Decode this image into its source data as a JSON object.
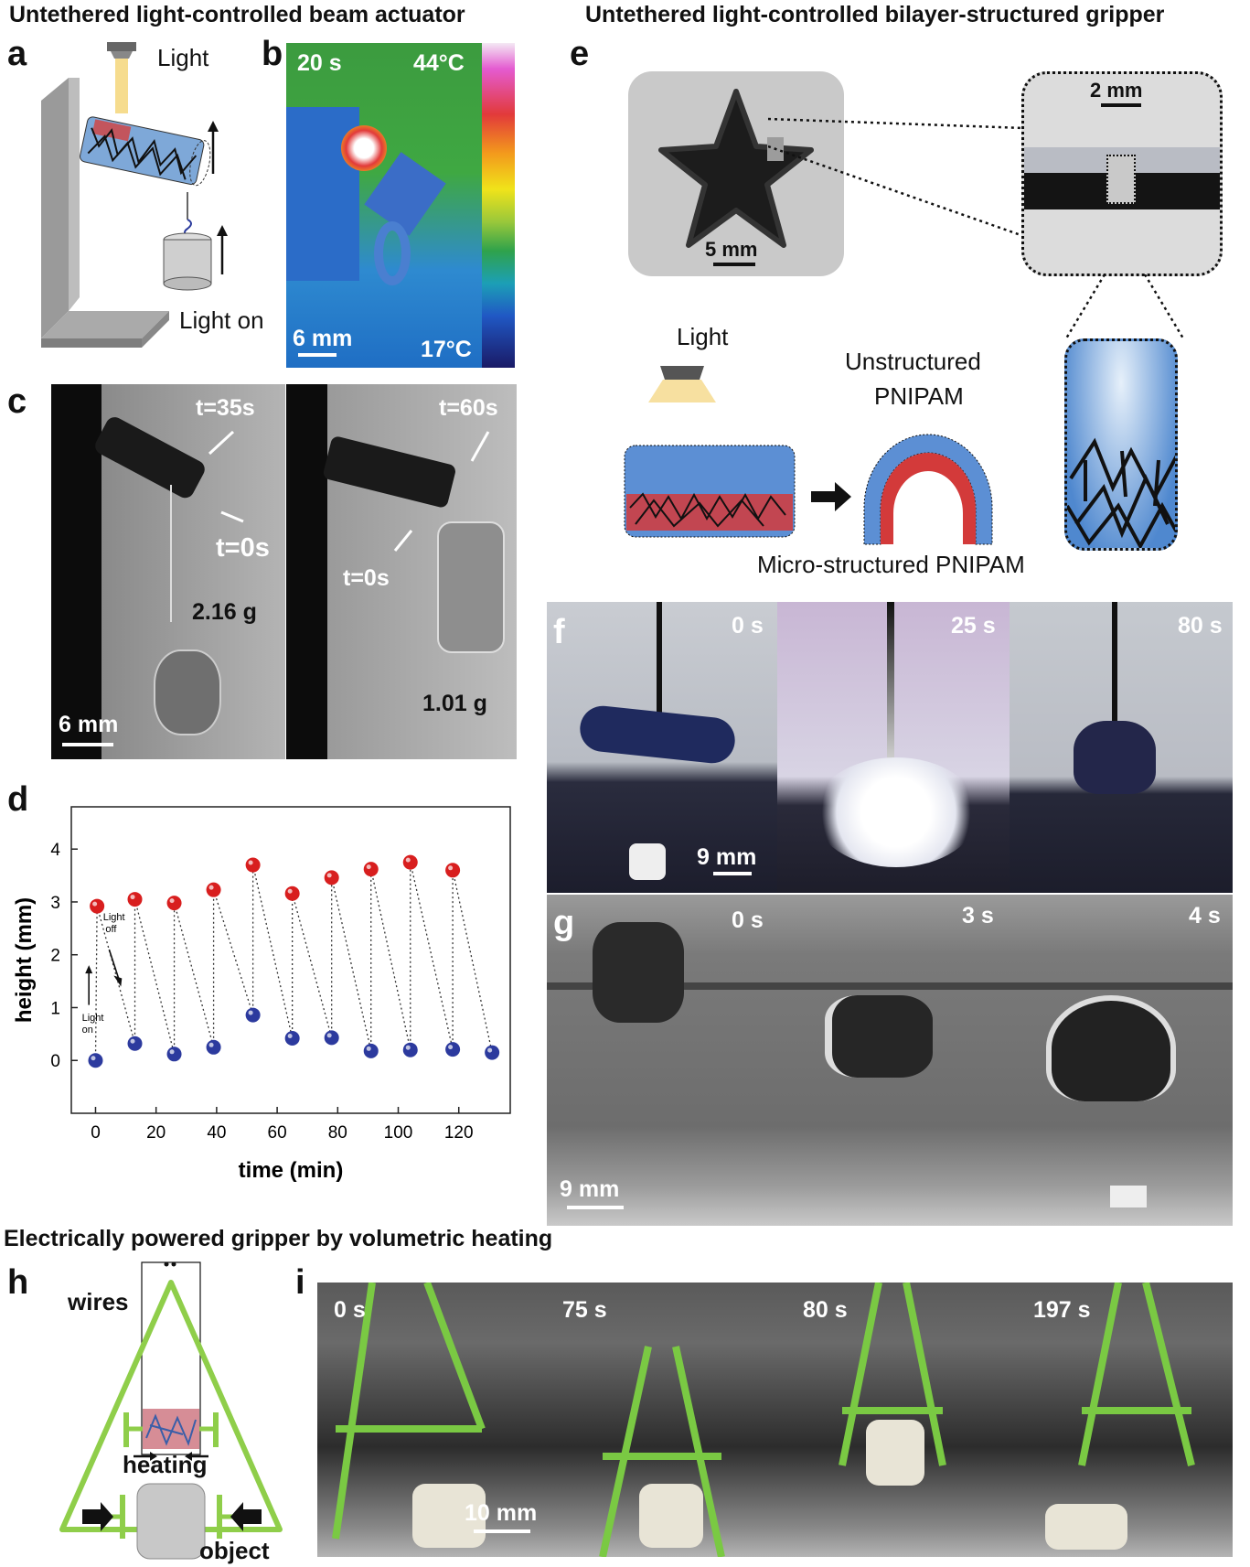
{
  "titles": {
    "beam": "Untethered light-controlled beam actuator",
    "bilayer": "Untethered light-controlled bilayer-structured gripper",
    "electric": "Electrically powered gripper by volumetric heating"
  },
  "panels": {
    "a": "a",
    "b": "b",
    "c": "c",
    "d": "d",
    "e": "e",
    "f": "f",
    "g": "g",
    "h": "h",
    "i": "i"
  },
  "a": {
    "light": "Light",
    "light_on": "Light on"
  },
  "b": {
    "time": "20 s",
    "tmax": "44°C",
    "tmin": "17°C",
    "scale": "6 mm"
  },
  "c": {
    "t35": "t=35s",
    "t0_left": "t=0s",
    "mass_left": "2.16 g",
    "t60": "t=60s",
    "t0_right": "t=0s",
    "mass_right": "1.01 g",
    "scale": "6 mm"
  },
  "e": {
    "scale_star": "5 mm",
    "scale_zoom": "2 mm",
    "light": "Light",
    "unstructured": "Unstructured",
    "unstructured2": "PNIPAM",
    "micro": "Micro-structured PNIPAM"
  },
  "f": {
    "t1": "0 s",
    "t2": "25 s",
    "t3": "80 s",
    "scale": "9 mm"
  },
  "g": {
    "t1": "0 s",
    "t2": "3 s",
    "t3": "4 s",
    "scale": "9 mm"
  },
  "h": {
    "wires": "wires",
    "heating": "heating",
    "object": "object"
  },
  "i": {
    "t1": "0 s",
    "t2": "75 s",
    "t3": "80 s",
    "t4": "197 s",
    "scale": "10 mm"
  },
  "chart_data": {
    "type": "scatter",
    "xlabel": "time (min)",
    "ylabel": "height (mm)",
    "xlim": [
      -8,
      137
    ],
    "ylim": [
      -1,
      4.8
    ],
    "xticks": [
      0,
      20,
      40,
      60,
      80,
      100,
      120
    ],
    "yticks": [
      0,
      1,
      2,
      3,
      4
    ],
    "annotations": {
      "light_on": "Light on",
      "light_off": "Light off"
    },
    "series": [
      {
        "color": "#d81e1e",
        "points": [
          [
            0.5,
            2.92
          ],
          [
            13,
            3.05
          ],
          [
            26,
            2.98
          ],
          [
            39,
            3.23
          ],
          [
            52,
            3.7
          ],
          [
            65,
            3.16
          ],
          [
            78,
            3.46
          ],
          [
            91,
            3.62
          ],
          [
            104,
            3.75
          ],
          [
            118,
            3.6
          ]
        ]
      },
      {
        "color": "#2c3a9e",
        "points": [
          [
            0,
            0
          ],
          [
            13,
            0.32
          ],
          [
            26,
            0.12
          ],
          [
            39,
            0.25
          ],
          [
            52,
            0.86
          ],
          [
            65,
            0.42
          ],
          [
            78,
            0.43
          ],
          [
            91,
            0.18
          ],
          [
            104,
            0.2
          ],
          [
            118,
            0.21
          ],
          [
            131,
            0.15
          ]
        ]
      }
    ],
    "connectors": [
      [
        [
          0,
          0
        ],
        [
          0.5,
          2.92
        ]
      ],
      [
        [
          0.5,
          2.92
        ],
        [
          13,
          0.32
        ]
      ],
      [
        [
          13,
          0.32
        ],
        [
          13,
          3.05
        ]
      ],
      [
        [
          13,
          3.05
        ],
        [
          26,
          0.12
        ]
      ],
      [
        [
          26,
          0.12
        ],
        [
          26,
          2.98
        ]
      ],
      [
        [
          26,
          2.98
        ],
        [
          39,
          0.25
        ]
      ],
      [
        [
          39,
          0.25
        ],
        [
          39,
          3.23
        ]
      ],
      [
        [
          39,
          3.23
        ],
        [
          52,
          0.86
        ]
      ],
      [
        [
          52,
          0.86
        ],
        [
          52,
          3.7
        ]
      ],
      [
        [
          52,
          3.7
        ],
        [
          65,
          0.42
        ]
      ],
      [
        [
          65,
          0.42
        ],
        [
          65,
          3.16
        ]
      ],
      [
        [
          65,
          3.16
        ],
        [
          78,
          0.43
        ]
      ],
      [
        [
          78,
          0.43
        ],
        [
          78,
          3.46
        ]
      ],
      [
        [
          78,
          3.46
        ],
        [
          91,
          0.18
        ]
      ],
      [
        [
          91,
          0.18
        ],
        [
          91,
          3.62
        ]
      ],
      [
        [
          91,
          3.62
        ],
        [
          104,
          0.2
        ]
      ],
      [
        [
          104,
          0.2
        ],
        [
          104,
          3.75
        ]
      ],
      [
        [
          104,
          3.75
        ],
        [
          118,
          0.21
        ]
      ],
      [
        [
          118,
          0.21
        ],
        [
          118,
          3.6
        ]
      ],
      [
        [
          118,
          3.6
        ],
        [
          131,
          0.15
        ]
      ]
    ]
  }
}
